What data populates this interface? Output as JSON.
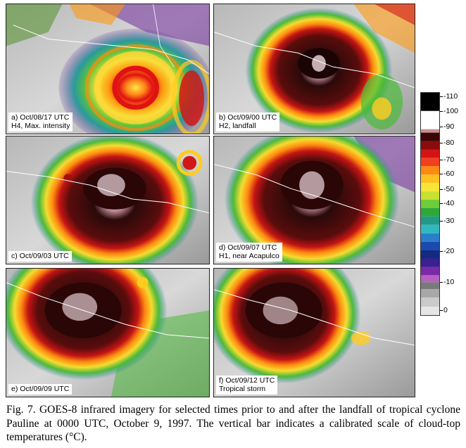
{
  "panels": [
    {
      "line1": "a) Oct/08/17 UTC",
      "line2": "H4, Max. intensity"
    },
    {
      "line1": "b) Oct/09/00 UTC",
      "line2": "H2, landfall"
    },
    {
      "line1": "c) Oct/09/03 UTC",
      "line2": ""
    },
    {
      "line1": "d) Oct/09/07 UTC",
      "line2": "H1, near Acapulco"
    },
    {
      "line1": "e) Oct/09/09 UTC",
      "line2": ""
    },
    {
      "line1": "f) Oct/09/12 UTC",
      "line2": "Tropical storm"
    }
  ],
  "scale": {
    "labels": [
      "-110",
      "-100",
      "-90",
      "-80",
      "-70",
      "-60",
      "-50",
      "-40",
      "-30",
      "-20",
      "-10",
      "0"
    ]
  },
  "figure_caption": "Fig. 7. GOES-8 infrared imagery for selected times prior to and after the landfall of tropical cyclone Pauline at 0000 UTC, October 9, 1997. The vertical bar indicates a calibrated scale of cloud-top temperatures (°C)."
}
